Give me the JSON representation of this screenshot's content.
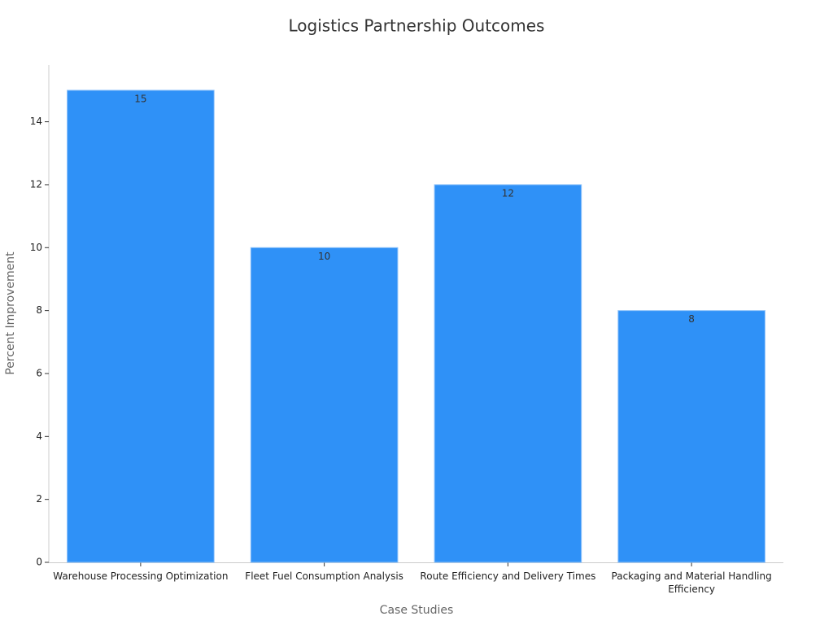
{
  "chart_data": {
    "type": "bar",
    "title": "Logistics Partnership Outcomes",
    "x_label": "Case Studies",
    "y_label": "Percent Improvement",
    "categories": [
      "Warehouse Processing Optimization",
      "Fleet Fuel Consumption Analysis",
      "Route Efficiency and Delivery Times",
      "Packaging and Material Handling Efficiency"
    ],
    "values": [
      15,
      10,
      12,
      8
    ],
    "color": "#2f91f7",
    "ylim": [
      0,
      15.8
    ],
    "yticks": [
      0,
      2,
      4,
      6,
      8,
      10,
      12,
      14
    ],
    "grid": false
  }
}
